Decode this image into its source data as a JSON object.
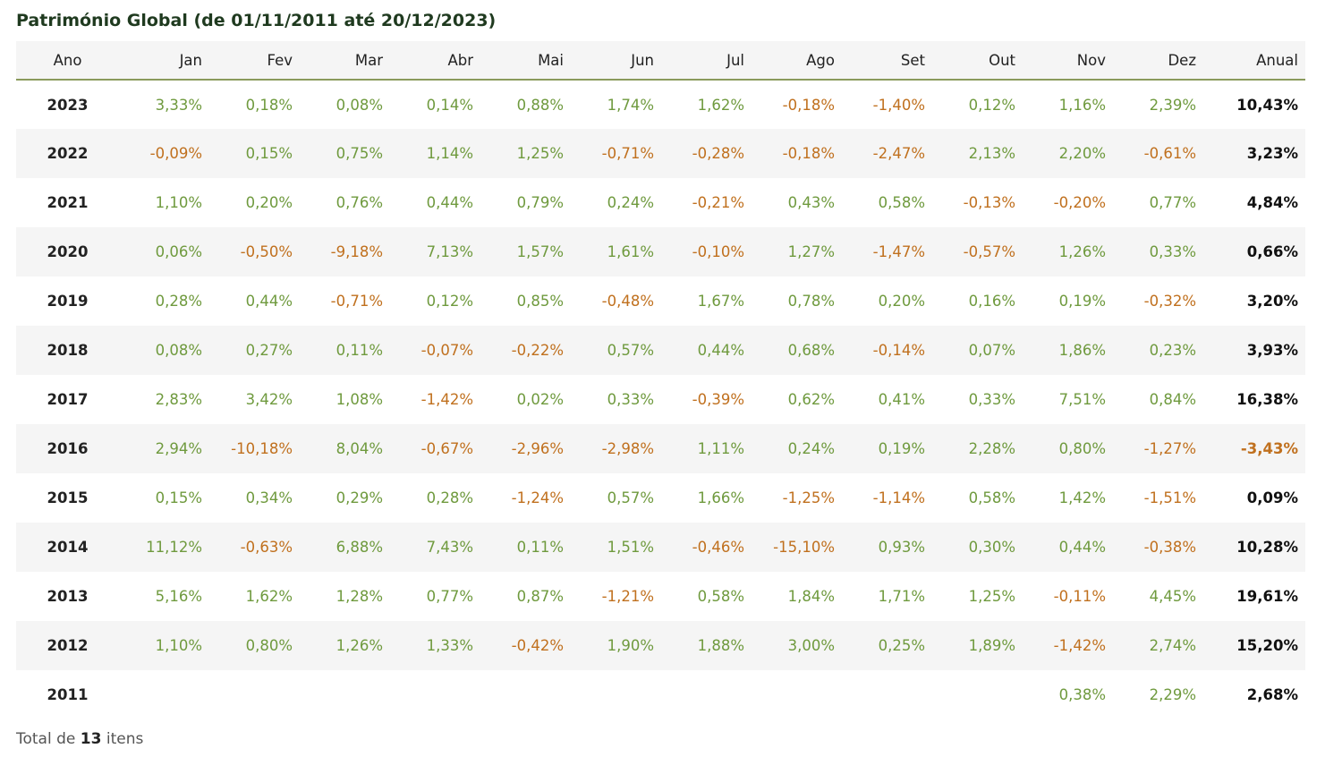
{
  "title": "Património Global (de 01/11/2011 até 20/12/2023)",
  "columns": [
    "Ano",
    "Jan",
    "Fev",
    "Mar",
    "Abr",
    "Mai",
    "Jun",
    "Jul",
    "Ago",
    "Set",
    "Out",
    "Nov",
    "Dez",
    "Anual"
  ],
  "rows": [
    {
      "year": "2023",
      "months": [
        "3,33%",
        "0,18%",
        "0,08%",
        "0,14%",
        "0,88%",
        "1,74%",
        "1,62%",
        "-0,18%",
        "-1,40%",
        "0,12%",
        "1,16%",
        "2,39%"
      ],
      "annual": "10,43%"
    },
    {
      "year": "2022",
      "months": [
        "-0,09%",
        "0,15%",
        "0,75%",
        "1,14%",
        "1,25%",
        "-0,71%",
        "-0,28%",
        "-0,18%",
        "-2,47%",
        "2,13%",
        "2,20%",
        "-0,61%"
      ],
      "annual": "3,23%"
    },
    {
      "year": "2021",
      "months": [
        "1,10%",
        "0,20%",
        "0,76%",
        "0,44%",
        "0,79%",
        "0,24%",
        "-0,21%",
        "0,43%",
        "0,58%",
        "-0,13%",
        "-0,20%",
        "0,77%"
      ],
      "annual": "4,84%"
    },
    {
      "year": "2020",
      "months": [
        "0,06%",
        "-0,50%",
        "-9,18%",
        "7,13%",
        "1,57%",
        "1,61%",
        "-0,10%",
        "1,27%",
        "-1,47%",
        "-0,57%",
        "1,26%",
        "0,33%"
      ],
      "annual": "0,66%"
    },
    {
      "year": "2019",
      "months": [
        "0,28%",
        "0,44%",
        "-0,71%",
        "0,12%",
        "0,85%",
        "-0,48%",
        "1,67%",
        "0,78%",
        "0,20%",
        "0,16%",
        "0,19%",
        "-0,32%"
      ],
      "annual": "3,20%"
    },
    {
      "year": "2018",
      "months": [
        "0,08%",
        "0,27%",
        "0,11%",
        "-0,07%",
        "-0,22%",
        "0,57%",
        "0,44%",
        "0,68%",
        "-0,14%",
        "0,07%",
        "1,86%",
        "0,23%"
      ],
      "annual": "3,93%"
    },
    {
      "year": "2017",
      "months": [
        "2,83%",
        "3,42%",
        "1,08%",
        "-1,42%",
        "0,02%",
        "0,33%",
        "-0,39%",
        "0,62%",
        "0,41%",
        "0,33%",
        "7,51%",
        "0,84%"
      ],
      "annual": "16,38%"
    },
    {
      "year": "2016",
      "months": [
        "2,94%",
        "-10,18%",
        "8,04%",
        "-0,67%",
        "-2,96%",
        "-2,98%",
        "1,11%",
        "0,24%",
        "0,19%",
        "2,28%",
        "0,80%",
        "-1,27%"
      ],
      "annual": "-3,43%"
    },
    {
      "year": "2015",
      "months": [
        "0,15%",
        "0,34%",
        "0,29%",
        "0,28%",
        "-1,24%",
        "0,57%",
        "1,66%",
        "-1,25%",
        "-1,14%",
        "0,58%",
        "1,42%",
        "-1,51%"
      ],
      "annual": "0,09%"
    },
    {
      "year": "2014",
      "months": [
        "11,12%",
        "-0,63%",
        "6,88%",
        "7,43%",
        "0,11%",
        "1,51%",
        "-0,46%",
        "-15,10%",
        "0,93%",
        "0,30%",
        "0,44%",
        "-0,38%"
      ],
      "annual": "10,28%"
    },
    {
      "year": "2013",
      "months": [
        "5,16%",
        "1,62%",
        "1,28%",
        "0,77%",
        "0,87%",
        "-1,21%",
        "0,58%",
        "1,84%",
        "1,71%",
        "1,25%",
        "-0,11%",
        "4,45%"
      ],
      "annual": "19,61%"
    },
    {
      "year": "2012",
      "months": [
        "1,10%",
        "0,80%",
        "1,26%",
        "1,33%",
        "-0,42%",
        "1,90%",
        "1,88%",
        "3,00%",
        "0,25%",
        "1,89%",
        "-1,42%",
        "2,74%"
      ],
      "annual": "15,20%"
    },
    {
      "year": "2011",
      "months": [
        "",
        "",
        "",
        "",
        "",
        "",
        "",
        "",
        "",
        "",
        "0,38%",
        "2,29%"
      ],
      "annual": "2,68%"
    }
  ],
  "footer": {
    "prefix": "Total de",
    "count": "13",
    "suffix": "itens"
  },
  "colors": {
    "positive": "#6f9a3e",
    "negative": "#c0701e",
    "header_rule": "#8a9a5b",
    "stripe": "#f5f5f5"
  }
}
